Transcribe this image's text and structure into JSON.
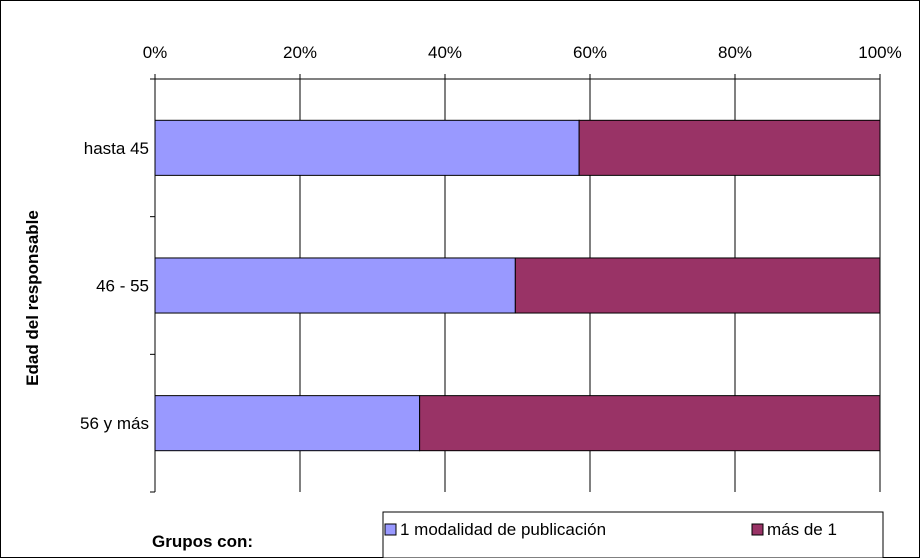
{
  "chart_data": {
    "type": "bar",
    "orientation": "horizontal",
    "stacked": "percent",
    "categories": [
      "hasta 45",
      "46 - 55",
      "56 y más"
    ],
    "series": [
      {
        "name": "1 modalidad de publicación",
        "values": [
          58.5,
          49.7,
          36.5
        ],
        "color": "#9999ff"
      },
      {
        "name": "más de 1",
        "values": [
          41.5,
          50.3,
          63.5
        ],
        "color": "#993366"
      }
    ],
    "x_ticks": [
      "0%",
      "20%",
      "40%",
      "60%",
      "80%",
      "100%"
    ],
    "xlim": [
      0,
      100
    ],
    "ylabel": "Edad del responsable",
    "legend_title": "Grupos con:",
    "legend_position": "bottom",
    "grid": true,
    "gridline_color": "#000000"
  }
}
